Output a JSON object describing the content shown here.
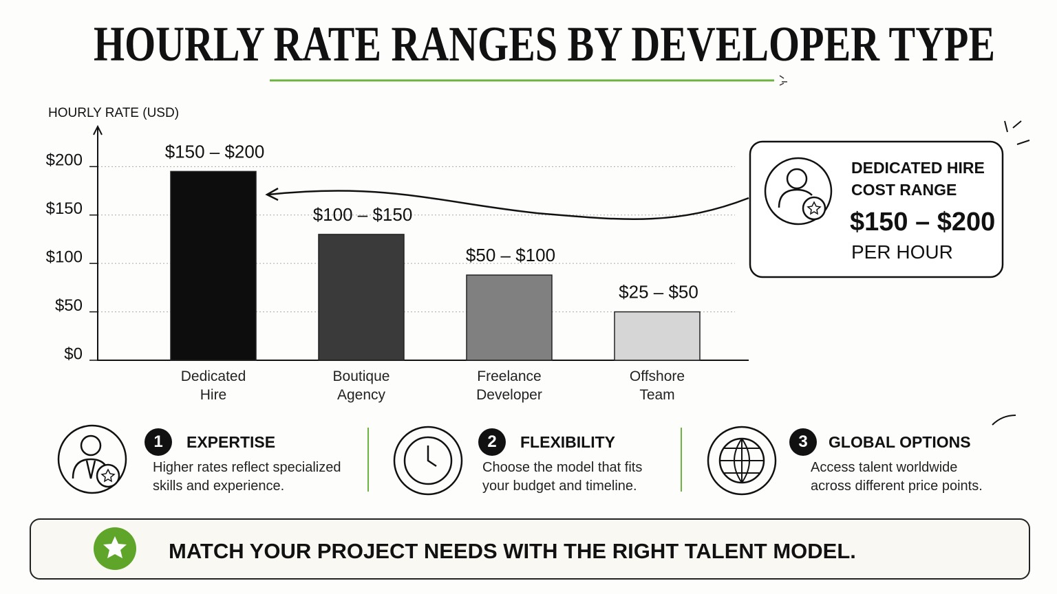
{
  "title": "HOURLY RATE RANGES BY DEVELOPER TYPE",
  "chart_data": {
    "type": "bar",
    "y_label": "HOURLY RATE (USD)",
    "categories": [
      "Dedicated Hire",
      "Boutique Agency",
      "Freelance Developer",
      "Offshore Team"
    ],
    "values": [
      195,
      130,
      88,
      50
    ],
    "range_labels": [
      "$150 – $200",
      "$100 – $150",
      "$50 – $100",
      "$25 – $50"
    ],
    "colors": [
      "#0d0d0d",
      "#3a3a3a",
      "#808080",
      "#d6d6d6"
    ],
    "ylim": [
      0,
      240
    ],
    "yticks": [
      {
        "value": 0,
        "label": "$0"
      },
      {
        "value": 50,
        "label": "$50"
      },
      {
        "value": 100,
        "label": "$100"
      },
      {
        "value": 150,
        "label": "$150"
      },
      {
        "value": 200,
        "label": "$200"
      }
    ],
    "grid": true
  },
  "callout": {
    "line1": "DEDICATED HIRE",
    "line2": "COST RANGE",
    "range": "$150 – $200",
    "unit": "PER HOUR"
  },
  "features": [
    {
      "number": "1",
      "title": "EXPERTISE",
      "text": "Higher rates reflect specialized skills and experience."
    },
    {
      "number": "2",
      "title": "FLEXIBILITY",
      "text": "Choose the model that fits your budget and timeline."
    },
    {
      "number": "3",
      "title": "GLOBAL OPTIONS",
      "text": "Access talent worldwide across different price points."
    }
  ],
  "footer": "MATCH YOUR PROJECT NEEDS WITH THE RIGHT TALENT MODEL."
}
